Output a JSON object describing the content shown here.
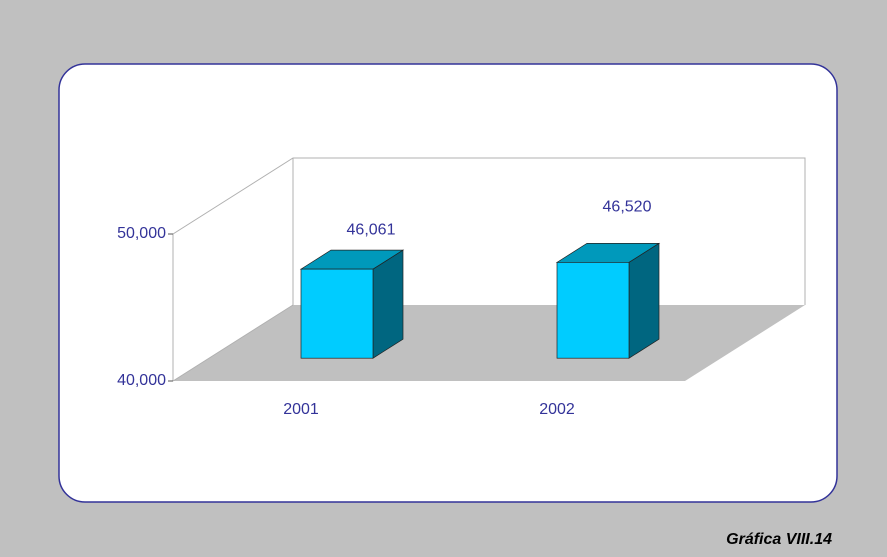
{
  "chart_data": {
    "type": "bar3d",
    "categories": [
      "2001",
      "2002"
    ],
    "values": [
      46061,
      46520
    ],
    "value_labels": [
      "46,061",
      "46,520"
    ],
    "colors": {
      "front": "#00ccff",
      "top": "#0099bb",
      "side": "#006680"
    },
    "ylim": [
      40000,
      50000
    ],
    "yticks": [
      {
        "value": 40000,
        "label": "40,000"
      },
      {
        "value": 50000,
        "label": "50,000"
      }
    ],
    "caption": "Gráfica VIII.14"
  }
}
